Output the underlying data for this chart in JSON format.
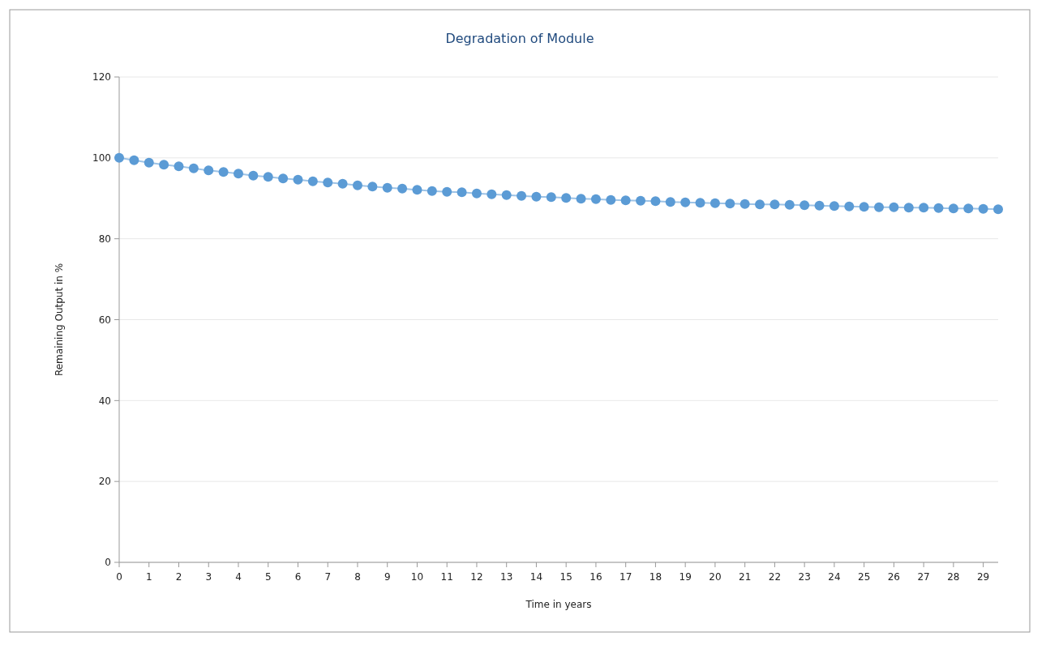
{
  "chart_data": {
    "type": "line",
    "title": "Degradation of Module",
    "xlabel": "Time in years",
    "ylabel": "Remaining Output in %",
    "x": [
      0,
      0.5,
      1,
      1.5,
      2,
      2.5,
      3,
      3.5,
      4,
      4.5,
      5,
      5.5,
      6,
      6.5,
      7,
      7.5,
      8,
      8.5,
      9,
      9.5,
      10,
      10.5,
      11,
      11.5,
      12,
      12.5,
      13,
      13.5,
      14,
      14.5,
      15,
      15.5,
      16,
      16.5,
      17,
      17.5,
      18,
      18.5,
      19,
      19.5,
      20,
      20.5,
      21,
      21.5,
      22,
      22.5,
      23,
      23.5,
      24,
      24.5,
      25,
      25.5,
      26,
      26.5,
      27,
      27.5,
      28,
      28.5,
      29,
      29.5
    ],
    "series": [
      {
        "color": "#5b9bd5",
        "values": [
          100,
          99.4,
          98.8,
          98.3,
          97.9,
          97.4,
          96.9,
          96.5,
          96.1,
          95.6,
          95.3,
          94.9,
          94.6,
          94.2,
          93.9,
          93.6,
          93.2,
          92.9,
          92.6,
          92.4,
          92.1,
          91.8,
          91.6,
          91.5,
          91.2,
          91.0,
          90.8,
          90.6,
          90.4,
          90.3,
          90.1,
          89.9,
          89.8,
          89.6,
          89.5,
          89.4,
          89.3,
          89.1,
          89.0,
          88.9,
          88.8,
          88.7,
          88.6,
          88.5,
          88.5,
          88.4,
          88.3,
          88.2,
          88.1,
          88.0,
          87.9,
          87.8,
          87.8,
          87.7,
          87.7,
          87.6,
          87.5,
          87.5,
          87.4,
          87.3
        ]
      }
    ],
    "xlim": [
      0,
      29.5
    ],
    "xticks": [
      0,
      1,
      2,
      3,
      4,
      5,
      6,
      7,
      8,
      9,
      10,
      11,
      12,
      13,
      14,
      15,
      16,
      17,
      18,
      19,
      20,
      21,
      22,
      23,
      24,
      25,
      26,
      27,
      28,
      29
    ],
    "ylim": [
      0,
      120
    ],
    "yticks": [
      0,
      20,
      40,
      60,
      80,
      100,
      120
    ],
    "grid": "y",
    "marker": "circle",
    "line_style": "solid"
  }
}
